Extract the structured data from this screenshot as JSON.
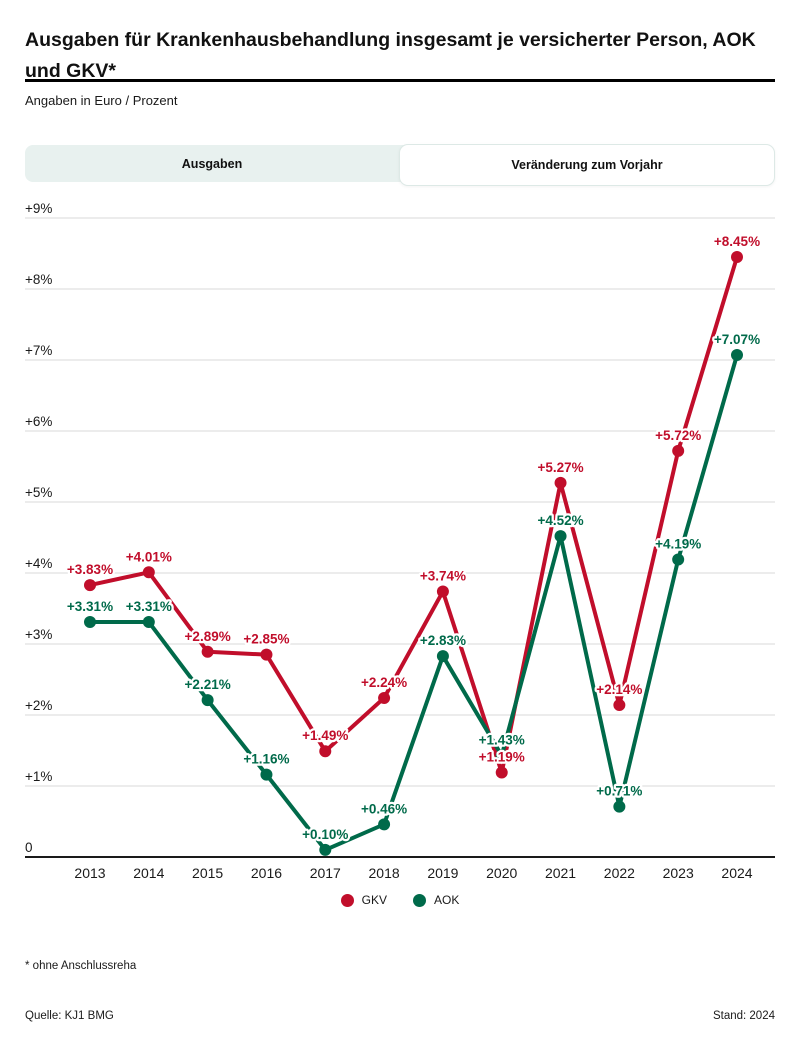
{
  "header": {
    "title": "Ausgaben für Krankenhausbehandlung insgesamt je versicherter Person, AOK und GKV*",
    "subtitle": "Angaben in Euro / Prozent"
  },
  "tabs": [
    {
      "label": "Ausgaben",
      "active": false
    },
    {
      "label": "Veränderung zum Vorjahr",
      "active": true
    }
  ],
  "chart_data": {
    "type": "line",
    "title": "Veränderung zum Vorjahr",
    "categories": [
      "2013",
      "2014",
      "2015",
      "2016",
      "2017",
      "2018",
      "2019",
      "2020",
      "2021",
      "2022",
      "2023",
      "2024"
    ],
    "series": [
      {
        "name": "GKV",
        "color": "#c10e2b",
        "values": [
          3.83,
          4.01,
          2.89,
          2.85,
          1.49,
          2.24,
          3.74,
          1.19,
          5.27,
          2.14,
          5.72,
          8.45
        ],
        "labels": [
          "+3.83%",
          "+4.01%",
          "+2.89%",
          "+2.85%",
          "+1.49%",
          "+2.24%",
          "+3.74%",
          "+1.19%",
          "+5.27%",
          "+2.14%",
          "+5.72%",
          "+8.45%"
        ]
      },
      {
        "name": "AOK",
        "color": "#006a4a",
        "values": [
          3.31,
          3.31,
          2.21,
          1.16,
          0.1,
          0.46,
          2.83,
          1.43,
          4.52,
          0.71,
          4.19,
          7.07
        ],
        "labels": [
          "+3.31%",
          "+3.31%",
          "+2.21%",
          "+1.16%",
          "+0.10%",
          "+0.46%",
          "+2.83%",
          "+1.43%",
          "+4.52%",
          "+0.71%",
          "+4.19%",
          "+7.07%"
        ]
      }
    ],
    "ylim": [
      0,
      9
    ],
    "ytick_labels": [
      "0",
      "+1%",
      "+2%",
      "+3%",
      "+4%",
      "+5%",
      "+6%",
      "+7%",
      "+8%",
      "+9%"
    ],
    "grid": true,
    "legend_position": "bottom",
    "grid_color": "#d9d9d9",
    "axis_color": "#1a1a1a"
  },
  "footnote": "* ohne Anschlussreha",
  "source": "Quelle: KJ1 BMG",
  "stand": "Stand: 2024"
}
